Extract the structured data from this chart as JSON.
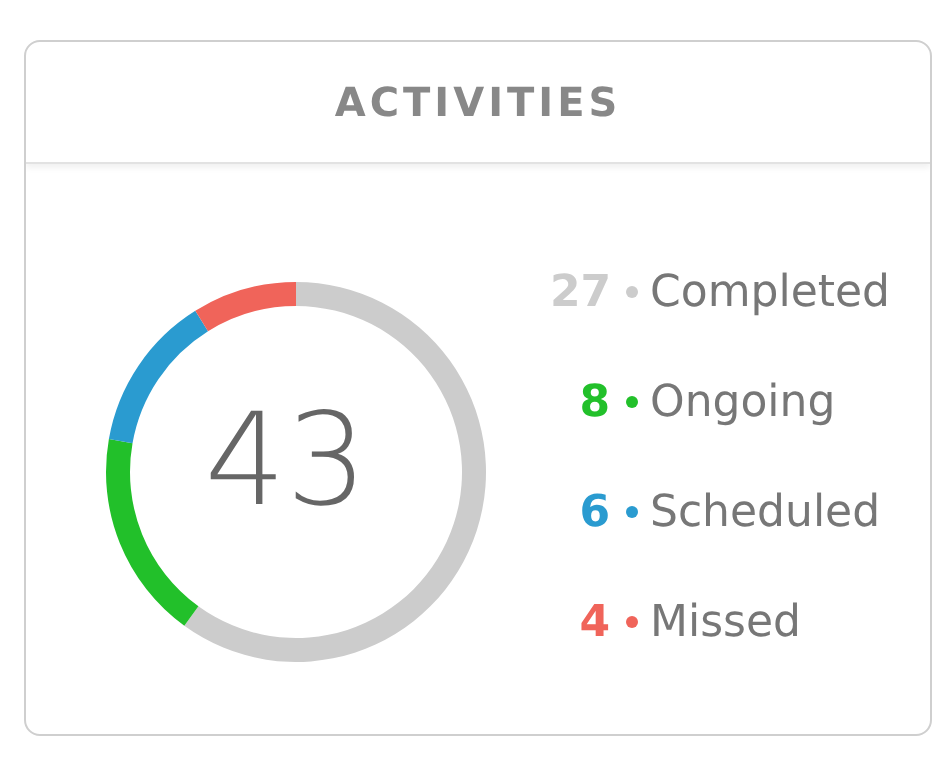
{
  "chart_data": {
    "type": "donut",
    "title": "ACTIVITIES",
    "categories": [
      "Completed",
      "Ongoing",
      "Scheduled",
      "Missed"
    ],
    "values": [
      27,
      8,
      6,
      4
    ],
    "colors": [
      "#cccccc",
      "#22c02a",
      "#2a9bd0",
      "#f0645a"
    ],
    "annotations": [
      "43"
    ],
    "data_labels": true,
    "legend": "right"
  }
}
